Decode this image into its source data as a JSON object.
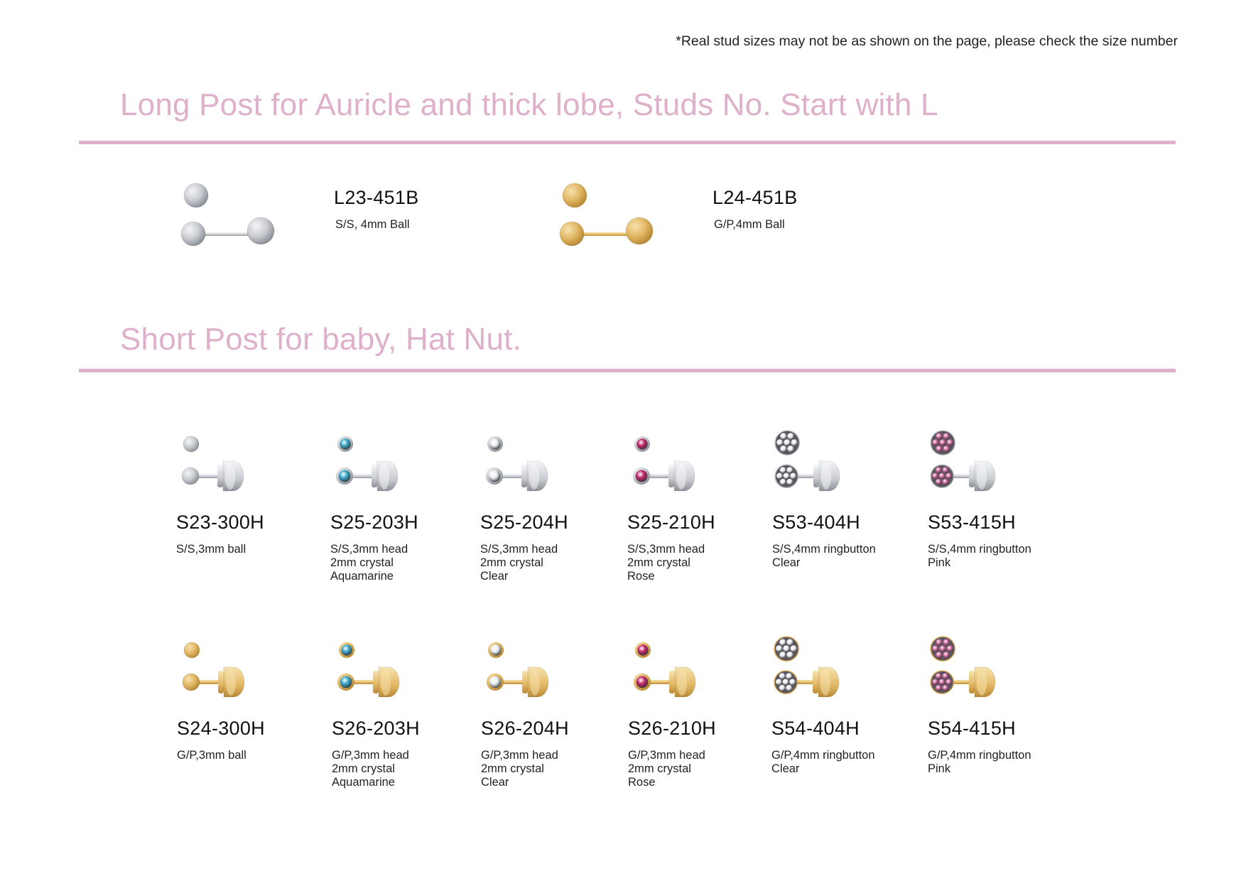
{
  "note": "*Real stud sizes may not be as shown on the page, please check the size number",
  "colors": {
    "accent": "#dfb0c9",
    "silver": "#c9ccd1",
    "gold": "#e2b865",
    "aquamarine": "#3aa6c9",
    "clear": "#e9eef2",
    "rose": "#c2266b",
    "pink": "#d06a9e"
  },
  "sections": [
    {
      "title": "Long Post for Auricle and thick lobe, Studs No. Start with L",
      "products": [
        {
          "code": "L23-451B",
          "desc": [
            "S/S, 4mm Ball"
          ],
          "icon": "silver-ball-long-post-stud-icon"
        },
        {
          "code": "L24-451B",
          "desc": [
            "G/P,4mm Ball"
          ],
          "icon": "gold-ball-long-post-stud-icon"
        }
      ]
    },
    {
      "title": "Short Post for baby, Hat Nut.",
      "products": [
        {
          "code": "S23-300H",
          "desc": [
            "S/S,3mm ball"
          ],
          "icon": "silver-ball-hat-nut-stud-icon"
        },
        {
          "code": "S25-203H",
          "desc": [
            "S/S,3mm head",
            "2mm crystal",
            "Aquamarine"
          ],
          "icon": "silver-aquamarine-crystal-stud-icon"
        },
        {
          "code": "S25-204H",
          "desc": [
            "S/S,3mm head",
            "2mm crystal",
            "Clear"
          ],
          "icon": "silver-clear-crystal-stud-icon"
        },
        {
          "code": "S25-210H",
          "desc": [
            "S/S,3mm head",
            "2mm crystal",
            "Rose"
          ],
          "icon": "silver-rose-crystal-stud-icon"
        },
        {
          "code": "S53-404H",
          "desc": [
            "S/S,4mm ringbutton",
            "Clear"
          ],
          "icon": "silver-clear-ringbutton-stud-icon"
        },
        {
          "code": "S53-415H",
          "desc": [
            "S/S,4mm ringbutton",
            "Pink"
          ],
          "icon": "silver-pink-ringbutton-stud-icon"
        },
        {
          "code": "S24-300H",
          "desc": [
            "G/P,3mm ball"
          ],
          "icon": "gold-ball-hat-nut-stud-icon"
        },
        {
          "code": "S26-203H",
          "desc": [
            "G/P,3mm head",
            "2mm crystal",
            "Aquamarine"
          ],
          "icon": "gold-aquamarine-crystal-stud-icon"
        },
        {
          "code": "S26-204H",
          "desc": [
            "G/P,3mm head",
            "2mm crystal",
            "Clear"
          ],
          "icon": "gold-clear-crystal-stud-icon"
        },
        {
          "code": "S26-210H",
          "desc": [
            "G/P,3mm head",
            "2mm crystal",
            "Rose"
          ],
          "icon": "gold-rose-crystal-stud-icon"
        },
        {
          "code": "S54-404H",
          "desc": [
            "G/P,4mm ringbutton",
            "Clear"
          ],
          "icon": "gold-clear-ringbutton-stud-icon"
        },
        {
          "code": "S54-415H",
          "desc": [
            "G/P,4mm ringbutton",
            "Pink"
          ],
          "icon": "gold-pink-ringbutton-stud-icon"
        }
      ]
    }
  ]
}
